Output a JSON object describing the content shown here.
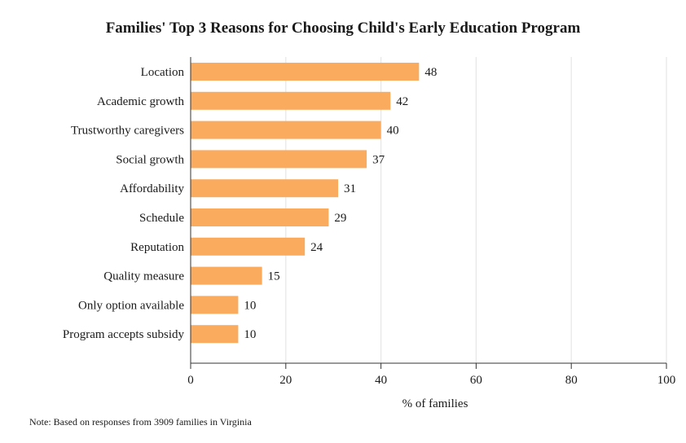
{
  "chart_data": {
    "type": "bar",
    "orientation": "horizontal",
    "title": "Families' Top 3 Reasons for Choosing Child's Early Education Program",
    "xlabel": "% of families",
    "ylabel": "",
    "xlim": [
      0,
      100
    ],
    "xticks": [
      0,
      20,
      40,
      60,
      80,
      100
    ],
    "grid": true,
    "bar_color": "#fbab5e",
    "categories": [
      "Location",
      "Academic growth",
      "Trustworthy caregivers",
      "Social growth",
      "Affordability",
      "Schedule",
      "Reputation",
      "Quality measure",
      "Only option available",
      "Program accepts subsidy"
    ],
    "values": [
      48,
      42,
      40,
      37,
      31,
      29,
      24,
      15,
      10,
      10
    ],
    "data_labels": [
      "48",
      "42",
      "40",
      "37",
      "31",
      "29",
      "24",
      "15",
      "10",
      "10"
    ]
  },
  "note": "Note: Based on responses from 3909 families in Virginia"
}
